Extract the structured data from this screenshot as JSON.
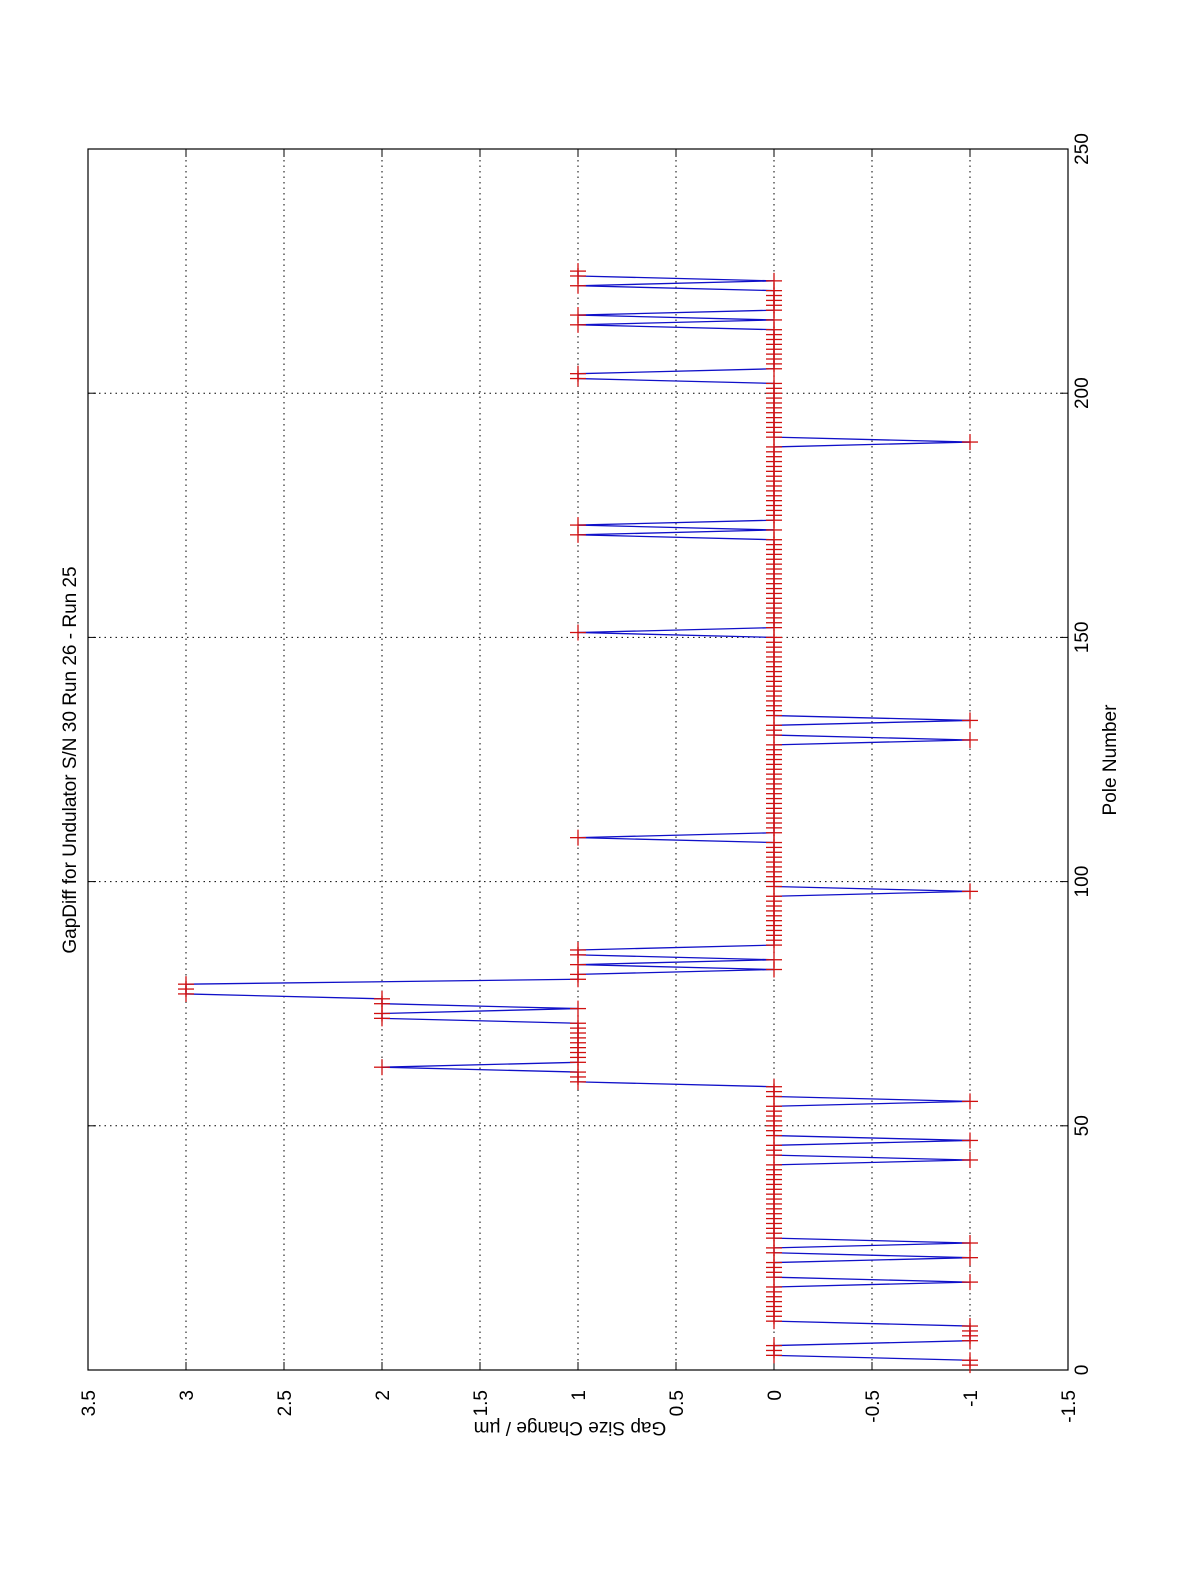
{
  "chart_data": {
    "type": "line",
    "orientation": "rotated-90",
    "title": "GapDiff  for Undulator S/N 30 Run 26 - Run 25",
    "xlabel": "Pole Number",
    "ylabel": "Gap Size Change / µm",
    "xlim": [
      0,
      250
    ],
    "ylim": [
      -1.5,
      3.5
    ],
    "x_ticks": [
      "0",
      "50",
      "100",
      "150",
      "200",
      "250"
    ],
    "x_tick_values": [
      0,
      50,
      100,
      150,
      200,
      250
    ],
    "y_ticks": [
      "3.5",
      "3",
      "2.5",
      "2",
      "1.5",
      "1",
      "0.5",
      "0",
      "-0.5",
      "-1",
      "-1.5"
    ],
    "y_tick_values": [
      3.5,
      3,
      2.5,
      2,
      1.5,
      1,
      0.5,
      0,
      -0.5,
      -1,
      -1.5
    ],
    "grid": true,
    "x_start": 1,
    "series": [
      {
        "name": "GapDiff",
        "line_color": "#1010c8",
        "marker": "+",
        "marker_color": "#d01010",
        "values": [
          -1,
          -1,
          0,
          0,
          0,
          -1,
          -1,
          -1,
          -1,
          0,
          0,
          0,
          0,
          0,
          0,
          0,
          0,
          -1,
          0,
          0,
          0,
          0,
          -1,
          0,
          0,
          -1,
          0,
          0,
          0,
          0,
          0,
          0,
          0,
          0,
          0,
          0,
          0,
          0,
          0,
          0,
          0,
          0,
          -1,
          0,
          0,
          0,
          -1,
          0,
          0,
          0,
          0,
          0,
          0,
          0,
          -1,
          0,
          0,
          0,
          1,
          1,
          1,
          2,
          1,
          1,
          1,
          1,
          1,
          1,
          1,
          1,
          1,
          2,
          2,
          1,
          2,
          2,
          3,
          3,
          3,
          1,
          1,
          0,
          1,
          0,
          1,
          1,
          0,
          0,
          0,
          0,
          0,
          0,
          0,
          0,
          0,
          0,
          0,
          -1,
          0,
          0,
          0,
          0,
          0,
          0,
          0,
          0,
          0,
          0,
          1,
          0,
          0,
          0,
          0,
          0,
          0,
          0,
          0,
          0,
          0,
          0,
          0,
          0,
          0,
          0,
          0,
          0,
          0,
          0,
          -1,
          0,
          0,
          0,
          -1,
          0,
          0,
          0,
          0,
          0,
          0,
          0,
          0,
          0,
          0,
          0,
          0,
          0,
          0,
          0,
          0,
          0,
          1,
          0,
          0,
          0,
          0,
          0,
          0,
          0,
          0,
          0,
          0,
          0,
          0,
          0,
          0,
          0,
          0,
          0,
          0,
          0,
          1,
          0,
          1,
          0,
          0,
          0,
          0,
          0,
          0,
          0,
          0,
          0,
          0,
          0,
          0,
          0,
          0,
          0,
          0,
          -1,
          0,
          0,
          0,
          0,
          0,
          0,
          0,
          0,
          0,
          0,
          0,
          0,
          1,
          1,
          0,
          0,
          0,
          0,
          0,
          0,
          0,
          0,
          0,
          1,
          0,
          1,
          0,
          0,
          0,
          0,
          0,
          1,
          0,
          1,
          1
        ]
      }
    ]
  }
}
